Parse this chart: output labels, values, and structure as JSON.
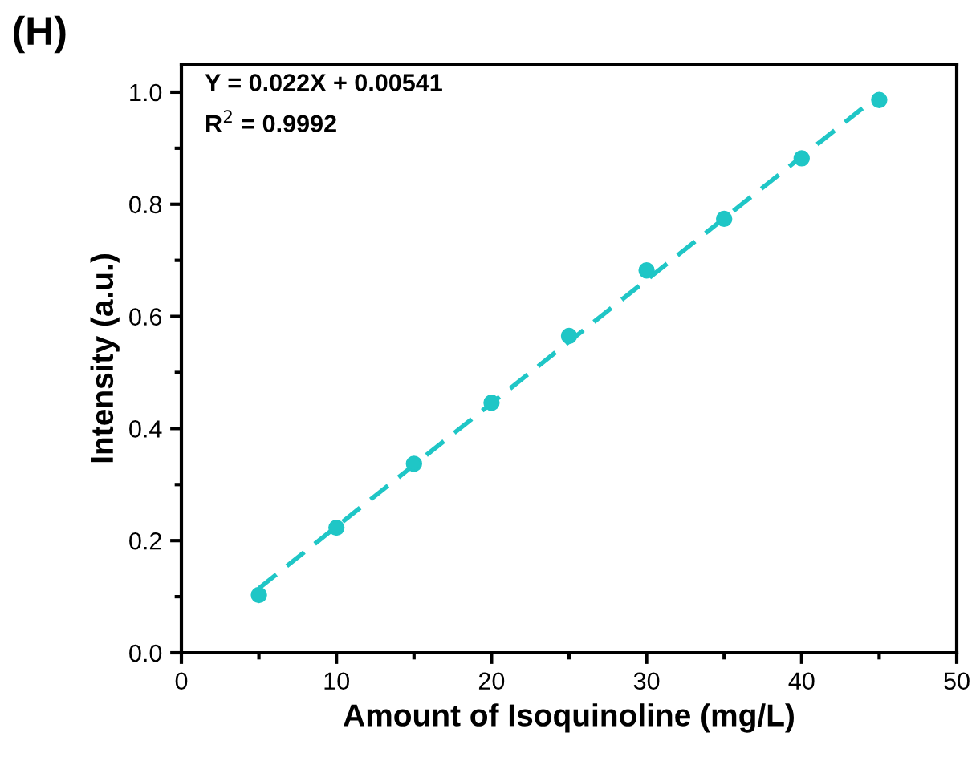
{
  "chart_data": {
    "type": "scatter",
    "xlabel": "Amount of Isoquinoline (mg/L)",
    "ylabel": "Intensity (a.u.)",
    "x": [
      5,
      10,
      15,
      20,
      25,
      30,
      35,
      40,
      45
    ],
    "series": [
      {
        "color": "#1fc6c6",
        "marker": "circle",
        "values": [
          0.103,
          0.223,
          0.337,
          0.446,
          0.565,
          0.682,
          0.774,
          0.882,
          0.986
        ]
      },
      {
        "type": "line",
        "color": "#1fc6c6",
        "line_style": "dashed",
        "marker": "none",
        "x": [
          5,
          45
        ],
        "values": [
          0.115,
          0.995
        ]
      }
    ],
    "annotations": [
      "(H)",
      "Y = 0.022X + 0.00541",
      "R$^{2}$ = 0.9992"
    ],
    "xlim": [
      0,
      50
    ],
    "xticks": [
      0,
      10,
      20,
      30,
      40,
      50
    ],
    "ylim": [
      0,
      1.05
    ],
    "yticks": [
      {
        "value": 0,
        "label": "0.0"
      },
      {
        "value": 0.2,
        "label": "0.2"
      },
      {
        "value": 0.4,
        "label": "0.4"
      },
      {
        "value": 0.6,
        "label": "0.6"
      },
      {
        "value": 0.8,
        "label": "0.8"
      },
      {
        "value": 1.0,
        "label": "1.0"
      }
    ],
    "grid": false,
    "legend": false
  }
}
